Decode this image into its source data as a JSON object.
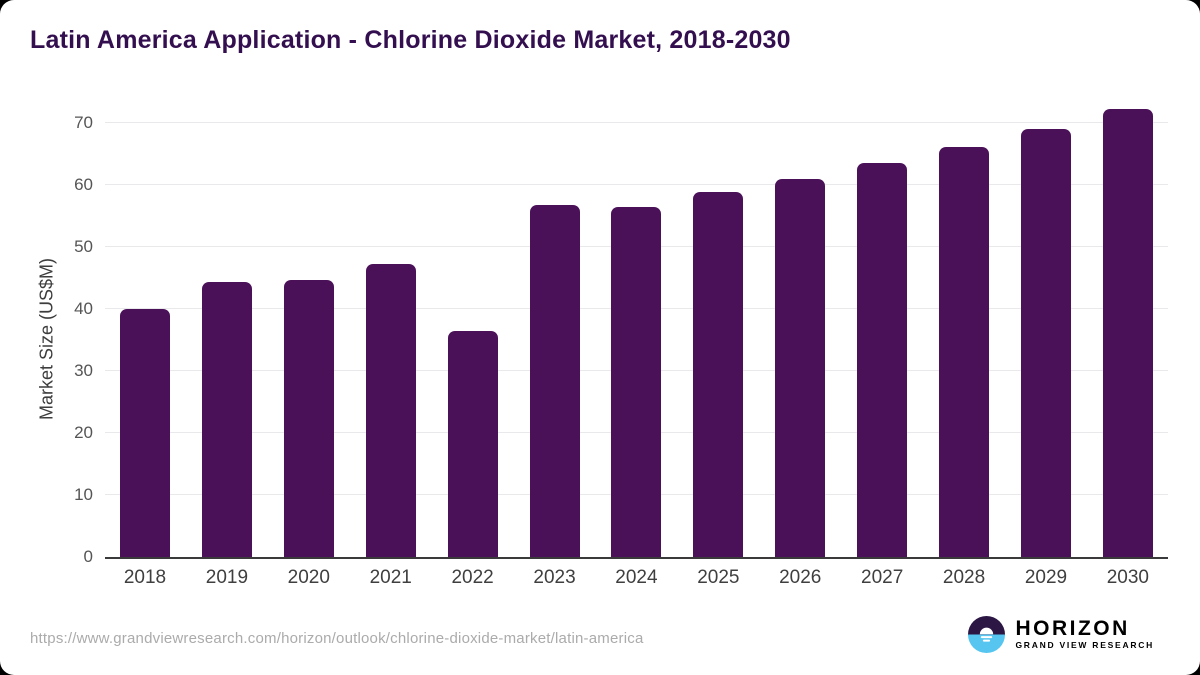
{
  "header": {
    "title": "Latin America Application - Chlorine Dioxide Market, 2018-2030"
  },
  "chart_data": {
    "type": "bar",
    "title": "Latin America Application - Chlorine Dioxide Market, 2018-2030",
    "categories": [
      "2018",
      "2019",
      "2020",
      "2021",
      "2022",
      "2023",
      "2024",
      "2025",
      "2026",
      "2027",
      "2028",
      "2029",
      "2030"
    ],
    "values": [
      40.0,
      44.3,
      44.7,
      47.3,
      36.4,
      56.7,
      56.5,
      58.8,
      61.0,
      63.6,
      66.1,
      69.1,
      72.2
    ],
    "xlabel": "",
    "ylabel": "Market Size (US$M)",
    "yticks": [
      0,
      10,
      20,
      30,
      40,
      50,
      60,
      70
    ],
    "ylim": [
      0,
      73
    ],
    "grid": true,
    "legend": "none",
    "bar_color": "#4a1158",
    "gridline_color": "#e9e9eb",
    "axis_line_color": "#3a3a3a"
  },
  "footer": {
    "source_url": "https://www.grandviewresearch.com/horizon/outlook/chlorine-dioxide-market/latin-america",
    "logo": {
      "brand": "HORIZON",
      "tagline": "GRAND VIEW RESEARCH",
      "brand_color": "#3b1a5e",
      "icon_top_color": "#2b1644",
      "icon_bottom_color": "#56c5f0"
    }
  }
}
